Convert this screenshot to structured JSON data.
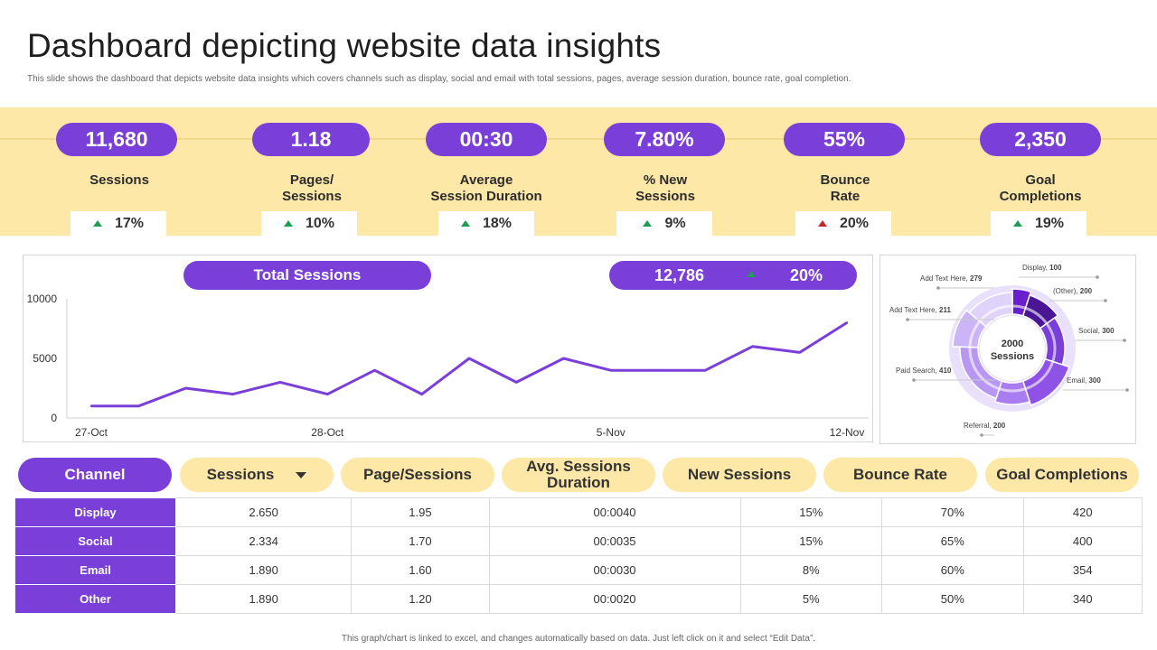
{
  "header": {
    "title": "Dashboard depicting website data insights",
    "subtitle": "This slide shows the dashboard that depicts website data insights which covers channels such as display, social and email  with total sessions, pages, average session duration, bounce rate, goal completion."
  },
  "kpis": [
    {
      "value": "11,680",
      "label": "Sessions",
      "change": "17%",
      "trend": "up"
    },
    {
      "value": "1.18",
      "label": "Pages/\nSessions",
      "change": "10%",
      "trend": "up"
    },
    {
      "value": "00:30",
      "label": "Average\nSession Duration",
      "change": "18%",
      "trend": "up"
    },
    {
      "value": "7.80%",
      "label": "% New\nSessions",
      "change": "9%",
      "trend": "up"
    },
    {
      "value": "55%",
      "label": "Bounce\nRate",
      "change": "20%",
      "trend": "down"
    },
    {
      "value": "2,350",
      "label": "Goal\nCompletions",
      "change": "19%",
      "trend": "up"
    }
  ],
  "total_sessions": {
    "title": "Total Sessions",
    "total": "12,786",
    "change": "20%"
  },
  "colors": {
    "accent": "#7a3ed9",
    "band": "#fde8a8",
    "up": "#1f9d55",
    "down": "#c62828"
  },
  "chart_data": [
    {
      "type": "line",
      "title": "Total Sessions",
      "x_tick_labels": [
        "27-Oct",
        "28-Oct",
        "5-Nov",
        "12-Nov"
      ],
      "y_tick_labels": [
        "10000",
        "5000",
        "0"
      ],
      "ylim": [
        0,
        10000
      ],
      "grid": false,
      "series": [
        {
          "values": [
            1000,
            1000,
            2500,
            2000,
            3000,
            2000,
            4000,
            2000,
            5000,
            3000,
            5000,
            4000,
            4000,
            4000,
            6000,
            5500,
            8000
          ]
        }
      ]
    },
    {
      "type": "pie",
      "center_value": "2000",
      "center_label": "Sessions",
      "slices": [
        {
          "label": "Display",
          "value": 100
        },
        {
          "label": "(Other)",
          "value": 200
        },
        {
          "label": "Social",
          "value": 300
        },
        {
          "label": "Email",
          "value": 300
        },
        {
          "label": "Referral",
          "value": 200
        },
        {
          "label": "Paid Search",
          "value": 410
        },
        {
          "label": "Add Text Here",
          "value": 211
        },
        {
          "label": "Add Text Here",
          "value": 279
        }
      ]
    }
  ],
  "table": {
    "headers": [
      "Channel",
      "Sessions",
      "Page/Sessions",
      "Avg. Sessions\nDuration",
      "New Sessions",
      "Bounce Rate",
      "Goal Completions"
    ],
    "rows": [
      [
        "Display",
        "2.650",
        "1.95",
        "00:0040",
        "15%",
        "70%",
        "420"
      ],
      [
        "Social",
        "2.334",
        "1.70",
        "00:0035",
        "15%",
        "65%",
        "400"
      ],
      [
        "Email",
        "1.890",
        "1.60",
        "00:0030",
        "8%",
        "60%",
        "354"
      ],
      [
        "Other",
        "1.890",
        "1.20",
        "00:0020",
        "5%",
        "50%",
        "340"
      ]
    ]
  },
  "footer": "This graph/chart is linked to excel, and changes automatically based on data. Just left click on it and select “Edit Data”."
}
